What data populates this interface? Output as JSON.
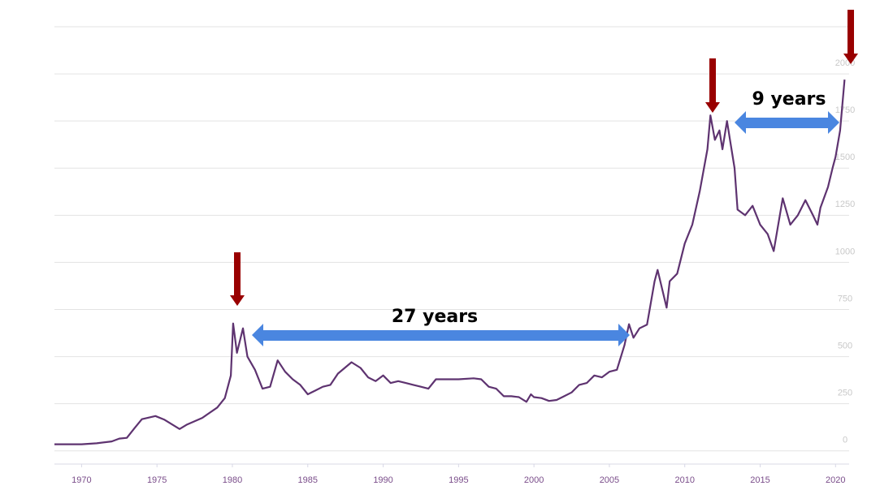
{
  "chart_data": {
    "type": "line",
    "annotations": [
      "27 years",
      "9 years"
    ],
    "x": [
      1968.2,
      1970,
      1971,
      1972,
      1972.5,
      1973,
      1973.5,
      1974,
      1974.9,
      1975.5,
      1976.5,
      1977,
      1978,
      1979,
      1979.5,
      1979.9,
      1980.05,
      1980.3,
      1980.7,
      1981,
      1981.5,
      1982,
      1982.5,
      1983,
      1983.5,
      1984,
      1984.5,
      1985,
      1985.5,
      1986,
      1986.5,
      1987,
      1987.9,
      1988.5,
      1989,
      1989.5,
      1990,
      1990.5,
      1991,
      1991.5,
      1992,
      1992.5,
      1993,
      1993.5,
      1994,
      1995,
      1996,
      1996.5,
      1997,
      1997.5,
      1998,
      1998.5,
      1999,
      1999.5,
      1999.8,
      2000,
      2000.5,
      2001,
      2001.5,
      2002,
      2002.5,
      2003,
      2003.5,
      2004,
      2004.5,
      2005,
      2005.5,
      2006,
      2006.3,
      2006.6,
      2007,
      2007.5,
      2008,
      2008.2,
      2008.8,
      2009,
      2009.5,
      2010,
      2010.5,
      2011,
      2011.5,
      2011.7,
      2012,
      2012.3,
      2012.5,
      2012.8,
      2013,
      2013.3,
      2013.5,
      2014,
      2014.5,
      2015,
      2015.5,
      2015.9,
      2016.5,
      2017,
      2017.5,
      2018,
      2018.5,
      2018.8,
      2019,
      2019.5,
      2019.8,
      2020,
      2020.3,
      2020.6
    ],
    "series": [
      {
        "color": "#5e3370",
        "values": [
          35,
          35,
          40,
          50,
          65,
          69,
          120,
          168,
          185,
          165,
          116,
          140,
          175,
          230,
          280,
          400,
          676,
          520,
          650,
          500,
          430,
          330,
          340,
          480,
          420,
          380,
          350,
          300,
          320,
          340,
          350,
          410,
          470,
          440,
          390,
          370,
          400,
          360,
          370,
          360,
          350,
          340,
          330,
          380,
          380,
          380,
          385,
          380,
          340,
          330,
          290,
          290,
          285,
          260,
          300,
          285,
          280,
          265,
          270,
          290,
          310,
          350,
          360,
          400,
          390,
          420,
          430,
          560,
          672,
          600,
          650,
          670,
          900,
          960,
          760,
          900,
          940,
          1100,
          1200,
          1380,
          1600,
          1780,
          1650,
          1700,
          1600,
          1750,
          1650,
          1500,
          1280,
          1250,
          1300,
          1200,
          1150,
          1060,
          1340,
          1200,
          1250,
          1330,
          1250,
          1200,
          1290,
          1400,
          1500,
          1560,
          1700,
          1970
        ]
      }
    ],
    "xlim": [
      1968.2,
      2020.9
    ],
    "xticks": [
      1970,
      1975,
      1980,
      1985,
      1990,
      1995,
      2000,
      2005,
      2010,
      2015,
      2020
    ],
    "ylim": [
      -70,
      2250
    ],
    "yticks": [
      0,
      250,
      500,
      750,
      1000,
      1250,
      1500,
      1750,
      2000
    ],
    "grid": true
  }
}
